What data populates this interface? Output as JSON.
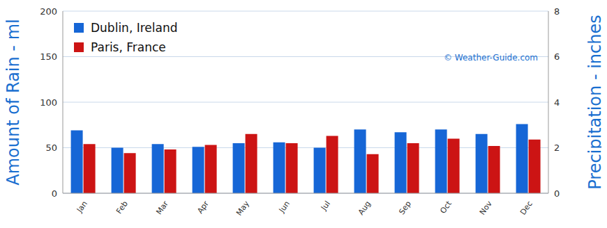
{
  "chart_data": {
    "type": "bar",
    "categories": [
      "Jan",
      "Feb",
      "Mar",
      "Apr",
      "May",
      "Jun",
      "Jul",
      "Aug",
      "Sep",
      "Oct",
      "Nov",
      "Dec"
    ],
    "series": [
      {
        "name": "Dublin, Ireland",
        "color": "#1666d6",
        "values": [
          69,
          50,
          54,
          51,
          55,
          56,
          50,
          70,
          67,
          70,
          65,
          76
        ]
      },
      {
        "name": "Paris, France",
        "color": "#cc1414",
        "values": [
          54,
          44,
          48,
          53,
          65,
          55,
          63,
          43,
          55,
          60,
          52,
          59
        ]
      }
    ],
    "ylabel": "Amount of Rain - ml",
    "y2label": "Precipitation - inches",
    "ylim": [
      0,
      200
    ],
    "yticks": [
      0,
      50,
      100,
      150,
      200
    ],
    "y2lim": [
      0,
      8
    ],
    "y2ticks": [
      0,
      2,
      4,
      6,
      8
    ],
    "annotations": [
      "© Weather-Guide.com"
    ],
    "grid": true,
    "legend": "top-left"
  }
}
